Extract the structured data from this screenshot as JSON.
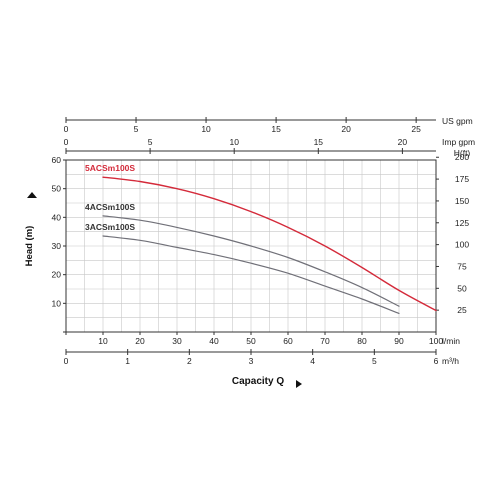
{
  "chart_data": {
    "type": "line",
    "xlabel": "Capacity Q",
    "ylabel": "Head (m)",
    "x_unit": "l/min",
    "y_unit": "m",
    "xlim": [
      0,
      100
    ],
    "ylim": [
      0,
      60
    ],
    "grid": true,
    "x_ticks": [
      0,
      10,
      20,
      30,
      40,
      50,
      60,
      70,
      80,
      90,
      100
    ],
    "y_ticks": [
      0,
      10,
      20,
      30,
      40,
      50,
      60
    ],
    "secondary_axes": {
      "us_gpm": {
        "label": "US gpm",
        "ticks": [
          0,
          5,
          10,
          15,
          20,
          25
        ]
      },
      "imp_gpm": {
        "label": "Imp gpm",
        "ticks": [
          0,
          5,
          10,
          15,
          20
        ]
      },
      "m3h": {
        "label": "m³/h",
        "ticks": [
          0,
          1,
          2,
          3,
          4,
          5,
          6
        ]
      },
      "h_ft": {
        "label": "H(ft)",
        "ticks": [
          25,
          50,
          75,
          100,
          125,
          150,
          175,
          200
        ]
      }
    },
    "series": [
      {
        "name": "5ACSm100S",
        "color": "#d42a3a",
        "x": [
          10,
          20,
          30,
          40,
          50,
          60,
          70,
          80,
          90,
          100
        ],
        "y": [
          54,
          52.5,
          50,
          46.5,
          42,
          36.5,
          30,
          22.5,
          14.5,
          7.5
        ]
      },
      {
        "name": "4ACSm100S",
        "color": "#707078",
        "x": [
          10,
          20,
          30,
          40,
          50,
          60,
          70,
          80,
          90
        ],
        "y": [
          40.5,
          39,
          36.5,
          33.5,
          30,
          26,
          21,
          15.5,
          9
        ]
      },
      {
        "name": "3ACSm100S",
        "color": "#707078",
        "x": [
          10,
          20,
          30,
          40,
          50,
          60,
          70,
          80,
          90
        ],
        "y": [
          33.5,
          32,
          29.5,
          27,
          24,
          20.5,
          16,
          11.5,
          6.5
        ]
      }
    ]
  }
}
